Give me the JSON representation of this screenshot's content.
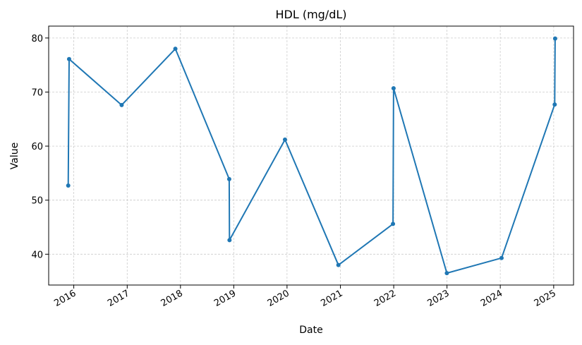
{
  "chart_data": {
    "type": "line",
    "title": "HDL (mg/dL)",
    "xlabel": "Date",
    "ylabel": "Value",
    "x_tick_labels": [
      "2016",
      "2017",
      "2018",
      "2019",
      "2020",
      "2021",
      "2022",
      "2023",
      "2024",
      "2025"
    ],
    "y_tick_labels": [
      "40",
      "50",
      "60",
      "70",
      "80"
    ],
    "yticks": [
      40,
      50,
      60,
      70,
      80
    ],
    "xlim": [
      "2015-07-13",
      "2025-05-17"
    ],
    "ylim": [
      34.3,
      82.2
    ],
    "grid": true,
    "legend": "none",
    "series": [
      {
        "color": "#1f77b4",
        "points": [
          {
            "x": "2015-11-24",
            "y": 52.7
          },
          {
            "x": "2015-11-30",
            "y": 76.1
          },
          {
            "x": "2016-11-24",
            "y": 67.6
          },
          {
            "x": "2017-11-27",
            "y": 78.0
          },
          {
            "x": "2018-12-01",
            "y": 53.9
          },
          {
            "x": "2018-12-03",
            "y": 42.6
          },
          {
            "x": "2019-12-18",
            "y": 61.2
          },
          {
            "x": "2020-12-18",
            "y": 38.0
          },
          {
            "x": "2021-12-27",
            "y": 45.6
          },
          {
            "x": "2021-12-31",
            "y": 70.7
          },
          {
            "x": "2022-12-31",
            "y": 36.5
          },
          {
            "x": "2024-01-10",
            "y": 39.3
          },
          {
            "x": "2025-01-08",
            "y": 67.7
          },
          {
            "x": "2025-01-11",
            "y": 79.9
          }
        ]
      }
    ]
  }
}
